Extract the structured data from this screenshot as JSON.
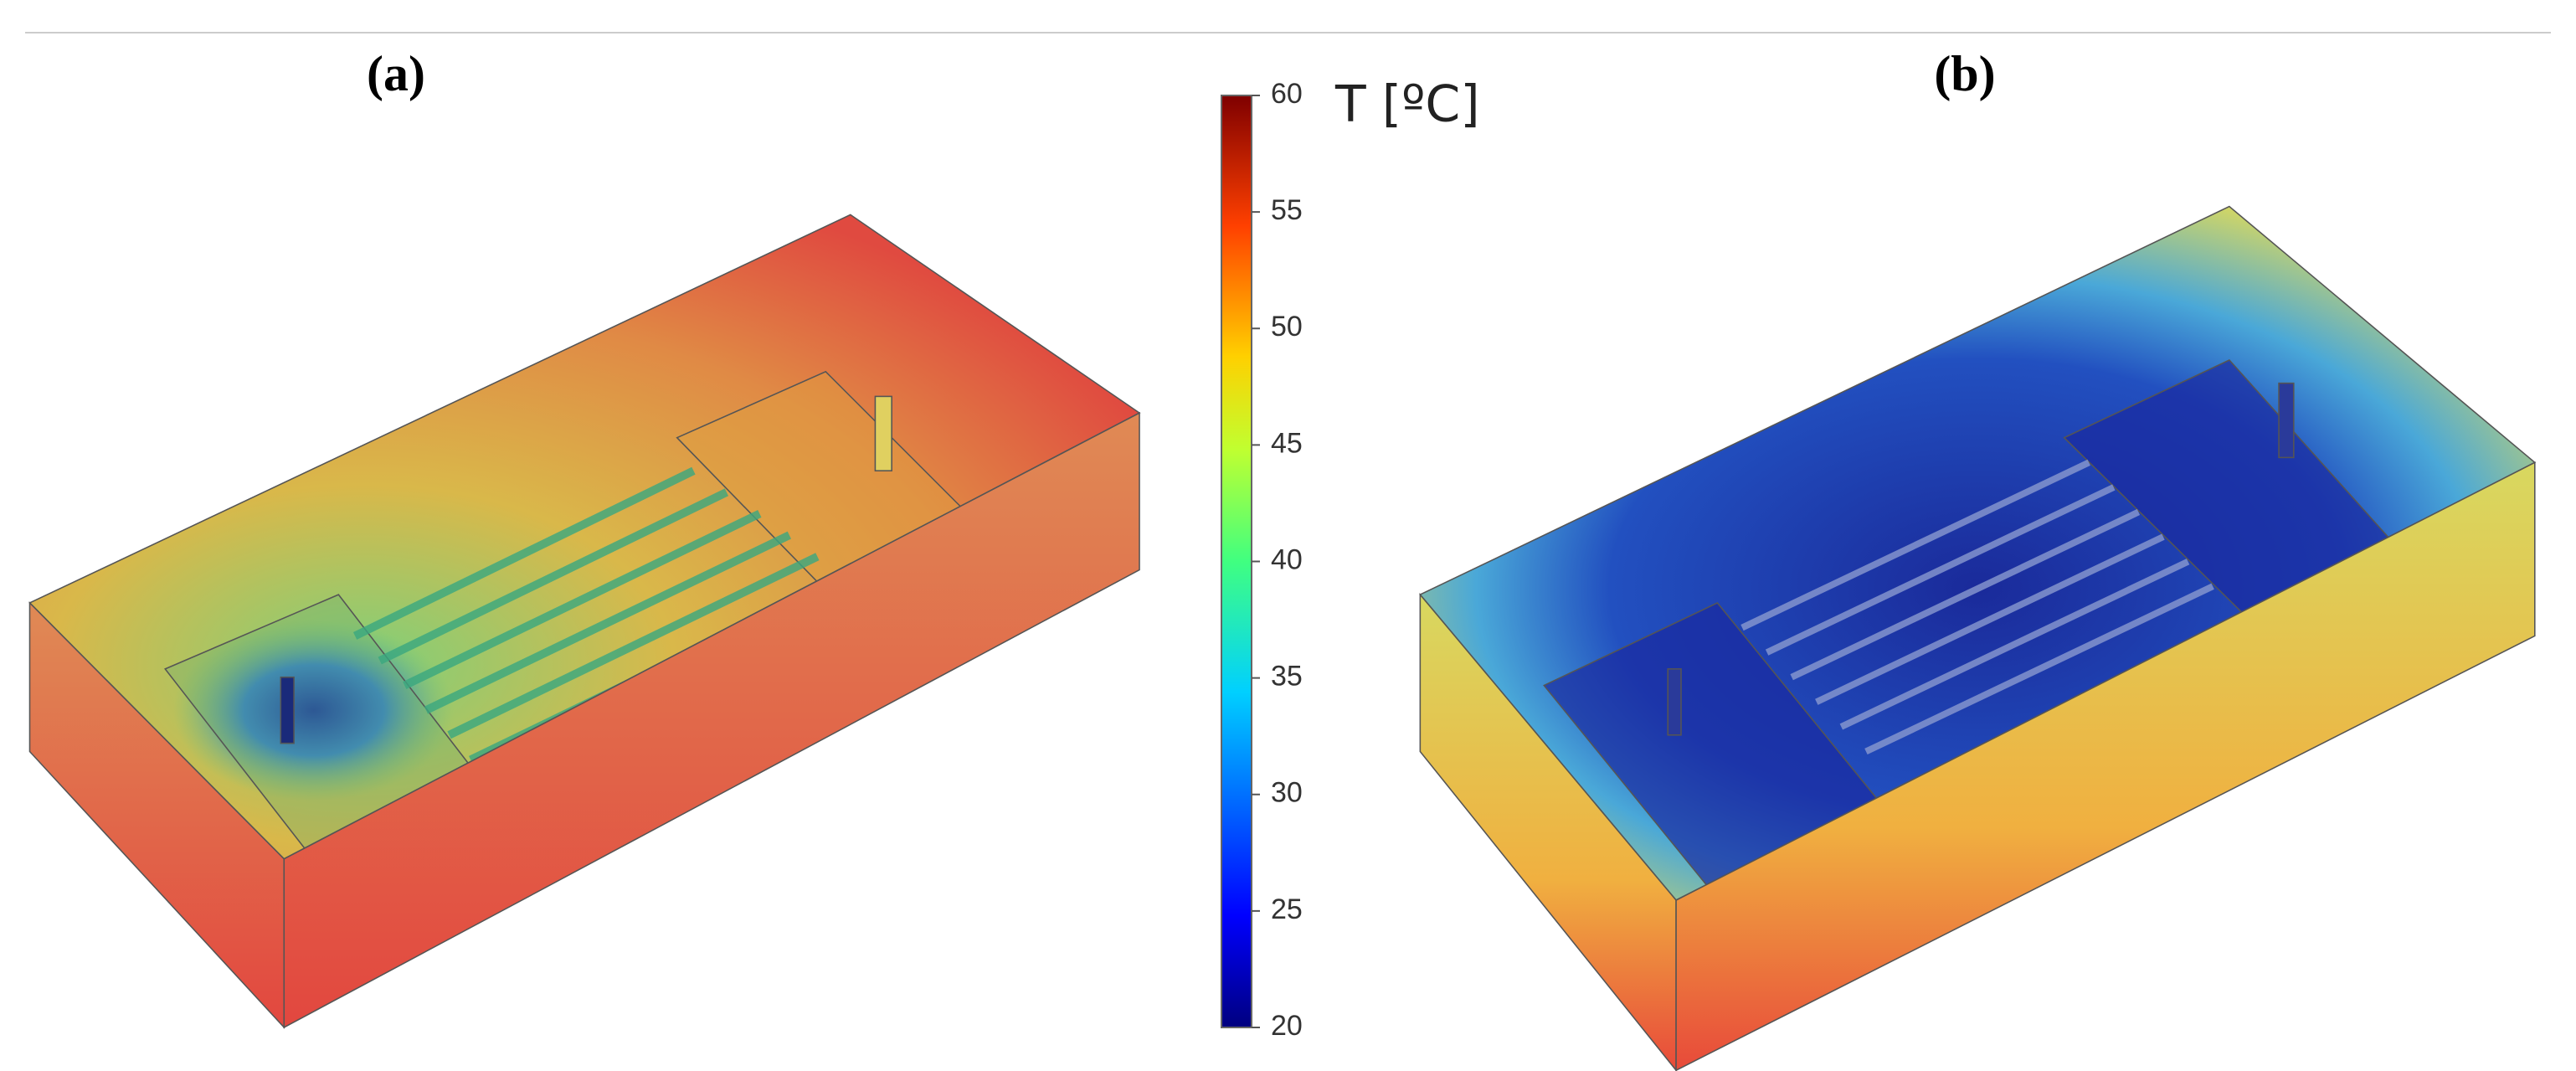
{
  "panels": [
    {
      "label": "(a)"
    },
    {
      "label": "(b)"
    }
  ],
  "colorbar": {
    "label": "T [ºC]",
    "range": [
      20,
      60
    ],
    "ticks": [
      20,
      25,
      30,
      35,
      40,
      45,
      50,
      55,
      60
    ]
  }
}
